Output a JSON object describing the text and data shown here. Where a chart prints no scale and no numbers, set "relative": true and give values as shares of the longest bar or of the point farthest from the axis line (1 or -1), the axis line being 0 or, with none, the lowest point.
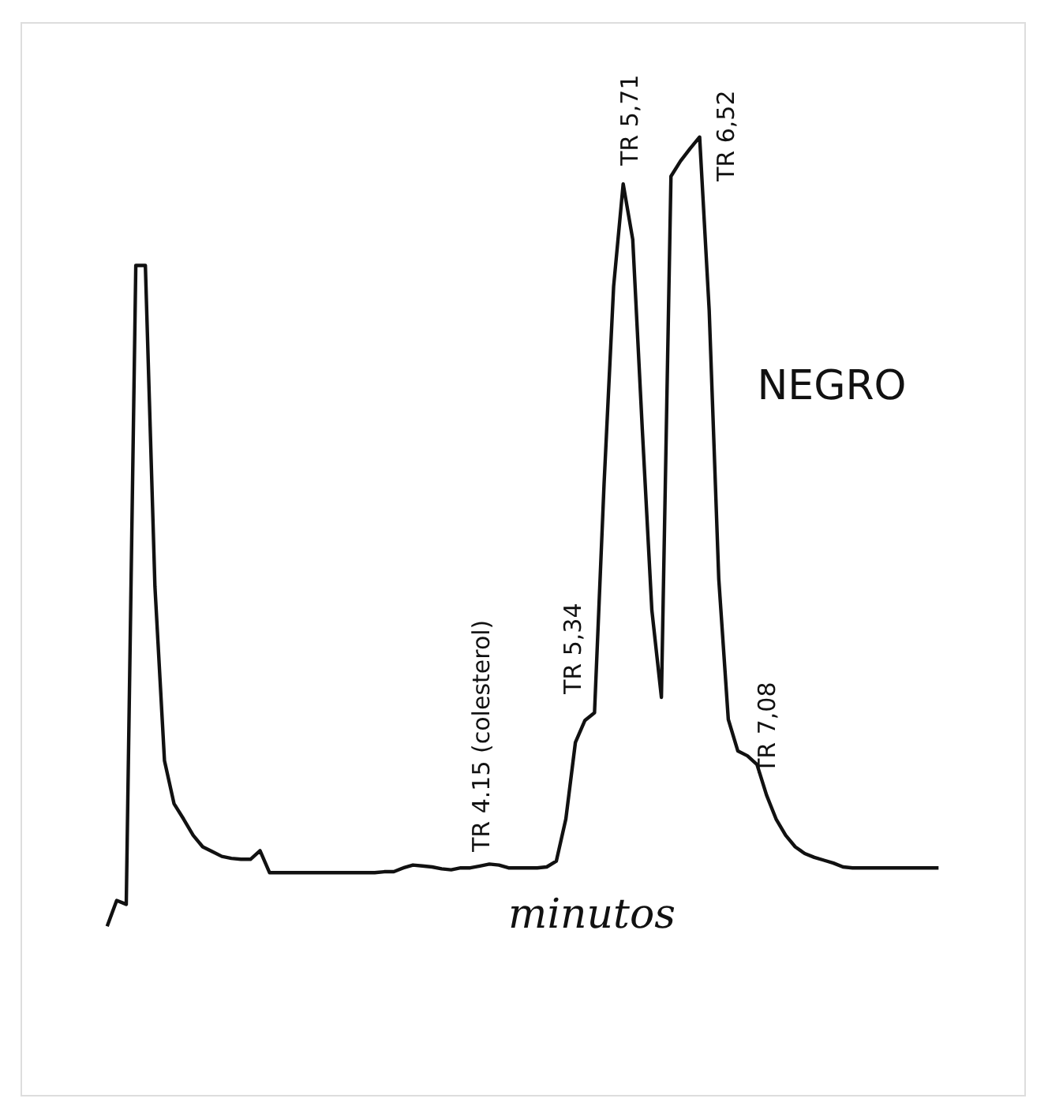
{
  "chart_data": {
    "type": "line",
    "relative": true,
    "xlabel": "minutos",
    "marker": "none",
    "line_style": "solid",
    "categories": [
      null,
      null,
      null,
      null,
      null,
      null,
      null,
      null,
      null,
      null,
      null,
      null,
      null,
      null,
      null,
      null,
      null,
      null,
      null,
      null,
      null,
      null,
      null,
      null,
      null,
      null,
      null,
      null,
      null,
      null,
      null,
      null,
      null,
      null,
      null,
      null,
      null,
      null,
      null,
      null,
      null,
      null,
      null,
      null,
      null,
      null,
      null,
      null,
      null,
      null,
      null,
      null,
      null,
      null,
      null,
      null,
      null,
      null,
      null,
      null,
      null,
      null,
      null,
      null,
      null,
      null,
      null,
      null,
      null,
      null,
      null,
      null,
      null,
      null,
      null,
      null,
      null,
      null,
      null,
      null,
      null,
      null,
      null,
      null,
      null,
      null,
      null,
      null
    ],
    "series": [
      {
        "color": "#111111",
        "values": [
          0.176,
          0.203,
          0.199,
          0.866,
          0.866,
          0.531,
          0.349,
          0.304,
          0.288,
          0.271,
          0.259,
          0.254,
          0.249,
          0.247,
          0.246,
          0.246,
          0.255,
          0.232,
          0.232,
          0.232,
          0.232,
          0.232,
          0.232,
          0.232,
          0.232,
          0.232,
          0.232,
          0.232,
          0.232,
          0.233,
          0.233,
          0.237,
          0.24,
          0.239,
          0.238,
          0.236,
          0.235,
          0.237,
          0.237,
          0.239,
          0.241,
          0.24,
          0.237,
          0.237,
          0.237,
          0.237,
          0.238,
          0.244,
          0.288,
          0.368,
          0.391,
          0.399,
          0.638,
          0.844,
          0.951,
          0.893,
          0.695,
          0.506,
          0.415,
          0.959,
          0.975,
          0.988,
          1,
          0.819,
          0.539,
          0.392,
          0.359,
          0.354,
          0.345,
          0.313,
          0.288,
          0.271,
          0.259,
          0.252,
          0.248,
          0.245,
          0.242,
          0.238,
          0.237,
          0.237,
          0.237,
          0.237,
          0.237,
          0.237,
          0.237,
          0.237,
          0.237,
          0.237
        ]
      }
    ],
    "annotations": [
      "TR 4.15 (colesterol)",
      "TR 5,34",
      "TR 5,71",
      "TR 6,52",
      "TR 7,08",
      "NEGRO"
    ]
  }
}
